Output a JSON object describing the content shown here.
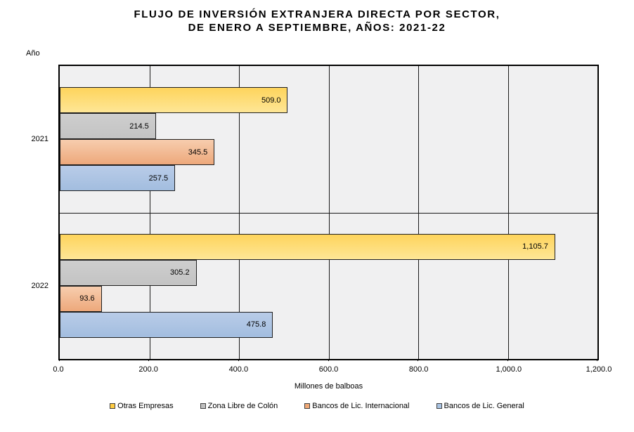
{
  "title": {
    "line1": "FLUJO DE INVERSIÓN EXTRANJERA DIRECTA POR SECTOR,",
    "line2": "DE ENERO A SEPTIEMBRE, AÑOS: 2021-22"
  },
  "axes": {
    "y_axis_title": "Año",
    "x_axis_title": "Millones de balboas",
    "x_ticks": [
      "0.0",
      "200.0",
      "400.0",
      "600.0",
      "800.0",
      "1,000.0",
      "1,200.0"
    ]
  },
  "colors": {
    "plot_background": "#f0f0f1",
    "gridline": "#1a1a1a",
    "bar_border": "#1f1f1f"
  },
  "chart_data": {
    "type": "bar",
    "orientation": "horizontal",
    "title": "FLUJO DE INVERSIÓN EXTRANJERA DIRECTA POR SECTOR, DE ENERO A SEPTIEMBRE, AÑOS: 2021-22",
    "xlabel": "Millones de balboas",
    "ylabel": "Año",
    "xlim": [
      0,
      1200
    ],
    "grid": true,
    "legend_position": "bottom",
    "categories": [
      "2021",
      "2022"
    ],
    "series": [
      {
        "name": "Otras Empresas",
        "values": [
          509.0,
          1105.7
        ],
        "labels": [
          "509.0",
          "1,105.7"
        ],
        "fill_top": "#fed45c",
        "fill_bottom": "#fee696",
        "legend_color": "#ffcc42"
      },
      {
        "name": "Zona Libre de Colón",
        "values": [
          214.5,
          305.2
        ],
        "labels": [
          "214.5",
          "305.2"
        ],
        "fill_top": "#cecece",
        "fill_bottom": "#c3c3c3",
        "legend_color": "#bfbfbf"
      },
      {
        "name": "Bancos de Lic. Internacional",
        "values": [
          345.5,
          93.6
        ],
        "labels": [
          "345.5",
          "93.6"
        ],
        "fill_top": "#f7cdae",
        "fill_bottom": "#eda87b",
        "legend_color": "#f0a875"
      },
      {
        "name": "Bancos de Lic. General",
        "values": [
          257.5,
          475.8
        ],
        "labels": [
          "257.5",
          "475.8"
        ],
        "fill_top": "#b9cce8",
        "fill_bottom": "#a2bddf",
        "legend_color": "#a9c3e2"
      }
    ]
  }
}
